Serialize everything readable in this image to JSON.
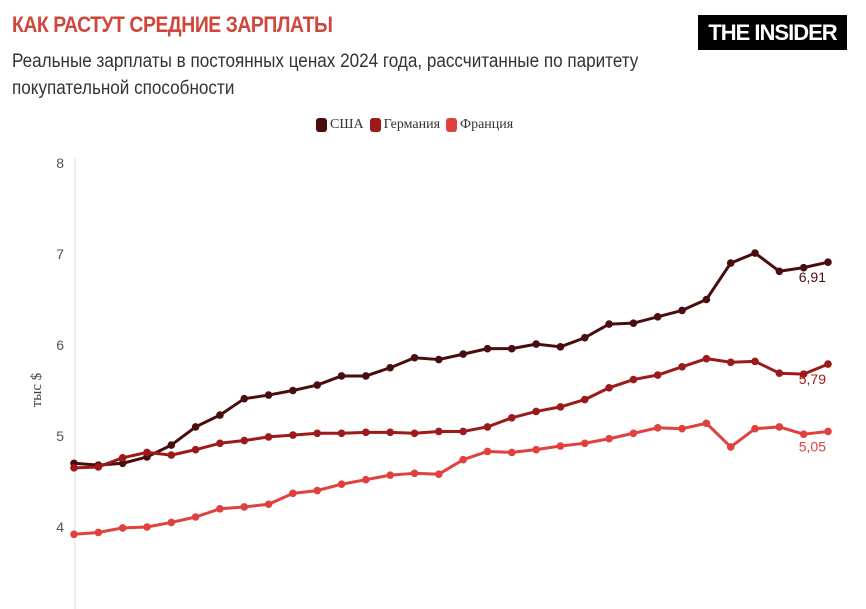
{
  "header": {
    "title": "КАК РАСТУТ СРЕДНИЕ ЗАРПЛАТЫ",
    "subtitle": "Реальные зарплаты в постоянных ценах 2024 года, рассчитанные по паритету покупательной способности",
    "logo": "THE INSIDER"
  },
  "chart_data": {
    "type": "line",
    "title": "КАК РАСТУТ СРЕДНИЕ ЗАРПЛАТЫ",
    "subtitle": "Реальные зарплаты в постоянных ценах 2024 года, рассчитанные по паритету покупательной способности",
    "ylabel": "тыс $",
    "xlabel": "",
    "ylim": [
      3,
      8
    ],
    "yticks": [
      "3",
      "4",
      "5",
      "6",
      "7",
      "8"
    ],
    "grid": false,
    "legend_position": "top-center",
    "series": [
      {
        "name": "США",
        "color": "#4a0d0d",
        "end_label": "6,91",
        "values": [
          4.7,
          4.68,
          4.7,
          4.77,
          4.9,
          5.1,
          5.23,
          5.41,
          5.45,
          5.5,
          5.56,
          5.66,
          5.66,
          5.75,
          5.86,
          5.84,
          5.9,
          5.96,
          5.96,
          6.01,
          5.98,
          6.08,
          6.23,
          6.24,
          6.31,
          6.38,
          6.5,
          6.9,
          7.01,
          6.81,
          6.85,
          6.91
        ]
      },
      {
        "name": "Германия",
        "color": "#9e1a1a",
        "end_label": "5,79",
        "values": [
          4.65,
          4.66,
          4.76,
          4.82,
          4.79,
          4.85,
          4.92,
          4.95,
          4.99,
          5.01,
          5.03,
          5.03,
          5.04,
          5.04,
          5.03,
          5.05,
          5.05,
          5.1,
          5.2,
          5.27,
          5.32,
          5.4,
          5.53,
          5.62,
          5.67,
          5.76,
          5.85,
          5.81,
          5.82,
          5.69,
          5.68,
          5.79
        ]
      },
      {
        "name": "Франция",
        "color": "#e0413f",
        "end_label": "5,05",
        "values": [
          3.92,
          3.94,
          3.99,
          4.0,
          4.05,
          4.11,
          4.2,
          4.22,
          4.25,
          4.37,
          4.4,
          4.47,
          4.52,
          4.57,
          4.59,
          4.58,
          4.74,
          4.83,
          4.82,
          4.85,
          4.89,
          4.92,
          4.97,
          5.03,
          5.09,
          5.08,
          5.14,
          4.88,
          5.08,
          5.1,
          5.02,
          5.05
        ]
      }
    ]
  }
}
